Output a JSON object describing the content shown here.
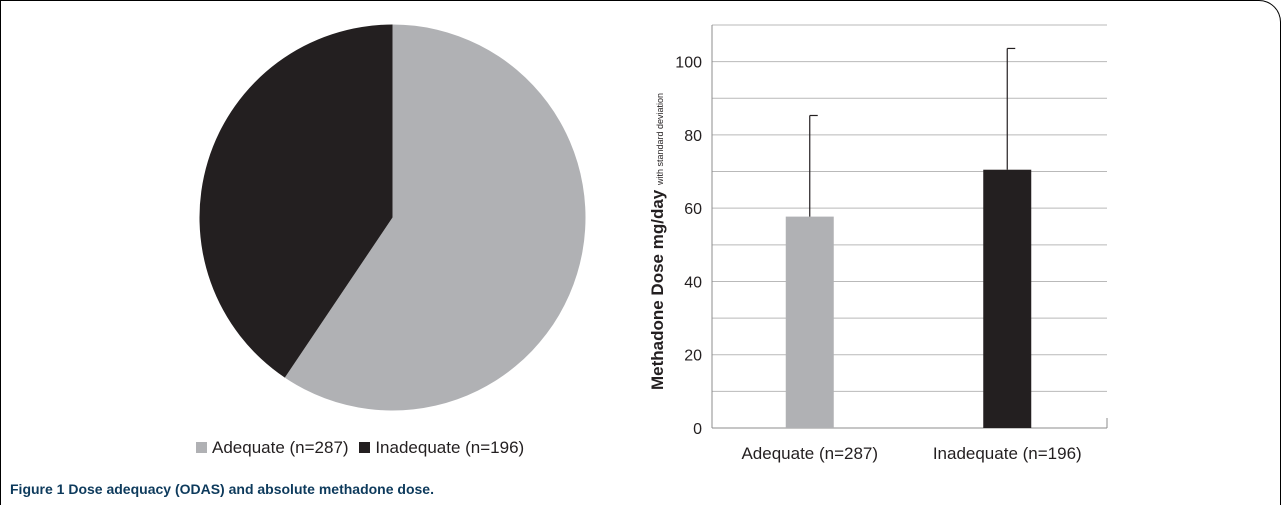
{
  "caption": "Figure 1 Dose adequacy (ODAS) and absolute methadone dose.",
  "colors": {
    "adequate": "#b0b1b4",
    "inadequate": "#231f20",
    "grid": "#b9b9b9",
    "caption": "#0d3a5c"
  },
  "chart_data": [
    {
      "type": "pie",
      "categories": [
        "Adequate (n=287)",
        "Inadequate (n=196)"
      ],
      "values": [
        287,
        196
      ],
      "legend": "bottom",
      "series_colors": [
        "#b0b1b4",
        "#231f20"
      ]
    },
    {
      "type": "bar",
      "categories": [
        "Adequate (n=287)",
        "Inadequate (n=196)"
      ],
      "values": [
        57.7,
        70.5
      ],
      "error_plus": [
        27.6,
        33.1
      ],
      "ylabel": "Methadone Dose mg/day",
      "ylabel_sub": "with standard deviation",
      "ylim": [
        0,
        110
      ],
      "yticks": [
        0,
        20,
        40,
        60,
        80,
        100
      ],
      "minor_grid_step": 10,
      "grid": true,
      "series_colors": [
        "#b0b1b4",
        "#231f20"
      ]
    }
  ]
}
